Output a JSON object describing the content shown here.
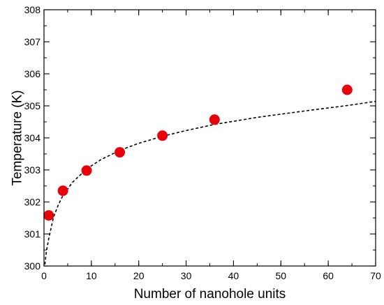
{
  "chart_data": {
    "type": "scatter",
    "xlabel": "Number of nanohole units",
    "ylabel": "Temperature (K)",
    "xlim": [
      0,
      70
    ],
    "ylim": [
      300,
      308
    ],
    "x_ticks": [
      "0",
      "10",
      "20",
      "30",
      "40",
      "50",
      "60",
      "70"
    ],
    "y_ticks": [
      "300",
      "301",
      "302",
      "303",
      "304",
      "305",
      "306",
      "307",
      "308"
    ],
    "x_minor_step": 5,
    "y_minor_step": 0.5,
    "grid": false,
    "series": [
      {
        "kind": "points",
        "color": "#e8000b",
        "x": [
          1,
          4,
          9,
          16,
          25,
          36,
          64
        ],
        "y": [
          301.58,
          302.35,
          302.98,
          303.55,
          304.07,
          304.57,
          305.5
        ]
      },
      {
        "kind": "fit",
        "style": "dashed",
        "color": "#000000",
        "x": [
          0.2,
          0.5,
          1,
          2,
          3,
          4,
          6,
          9,
          12,
          16,
          20,
          25,
          30,
          36,
          45,
          55,
          64,
          70
        ],
        "y": [
          300.05,
          300.45,
          300.85,
          301.52,
          301.9,
          302.2,
          302.61,
          303.03,
          303.32,
          303.61,
          303.83,
          304.05,
          304.23,
          304.42,
          304.64,
          304.84,
          305.01,
          305.14
        ]
      }
    ]
  }
}
